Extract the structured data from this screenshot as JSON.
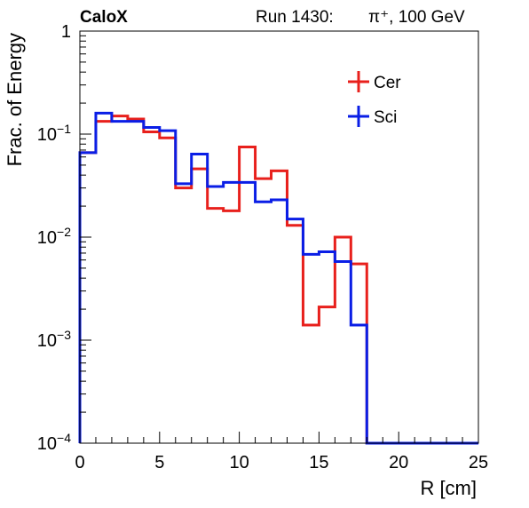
{
  "chart_data": {
    "type": "line",
    "style": "step-histogram",
    "brand": "CaloX",
    "run_label": "Run 1430:",
    "particle_label": "π⁺, 100 GeV",
    "xlabel": "R [cm]",
    "ylabel": "Frac. of Energy",
    "xlim": [
      0,
      25
    ],
    "ylim": [
      0.0001,
      1
    ],
    "yscale": "log",
    "grid": false,
    "legend_position": "top-right",
    "x_ticks": [
      0,
      5,
      10,
      15,
      20,
      25
    ],
    "y_ticks": [
      {
        "value": 0.0001,
        "base": "10",
        "exp": "−4"
      },
      {
        "value": 0.001,
        "base": "10",
        "exp": "−3"
      },
      {
        "value": 0.01,
        "base": "10",
        "exp": "−2"
      },
      {
        "value": 0.1,
        "base": "10",
        "exp": "−1"
      },
      {
        "value": 1,
        "base": "1",
        "exp": ""
      }
    ],
    "bin_edges": [
      0,
      1,
      2,
      3,
      4,
      5,
      6,
      7,
      8,
      9,
      10,
      11,
      12,
      13,
      14,
      15,
      16,
      17,
      18,
      19,
      20,
      21,
      22,
      23,
      24,
      25
    ],
    "series": [
      {
        "name": "Cer",
        "color": "#e8201c",
        "values": [
          0.066,
          0.133,
          0.15,
          0.14,
          0.105,
          0.092,
          0.03,
          0.046,
          0.019,
          0.018,
          0.075,
          0.037,
          0.044,
          0.013,
          0.0014,
          0.0021,
          0.01,
          0.0055,
          0,
          0,
          0,
          0,
          0,
          0,
          0
        ]
      },
      {
        "name": "Sci",
        "color": "#0a1ee6",
        "values": [
          0.066,
          0.16,
          0.133,
          0.133,
          0.116,
          0.108,
          0.033,
          0.064,
          0.031,
          0.034,
          0.034,
          0.022,
          0.023,
          0.015,
          0.0068,
          0.0072,
          0.0058,
          0.0014,
          0,
          0,
          0,
          0,
          0,
          0,
          0
        ]
      }
    ]
  }
}
